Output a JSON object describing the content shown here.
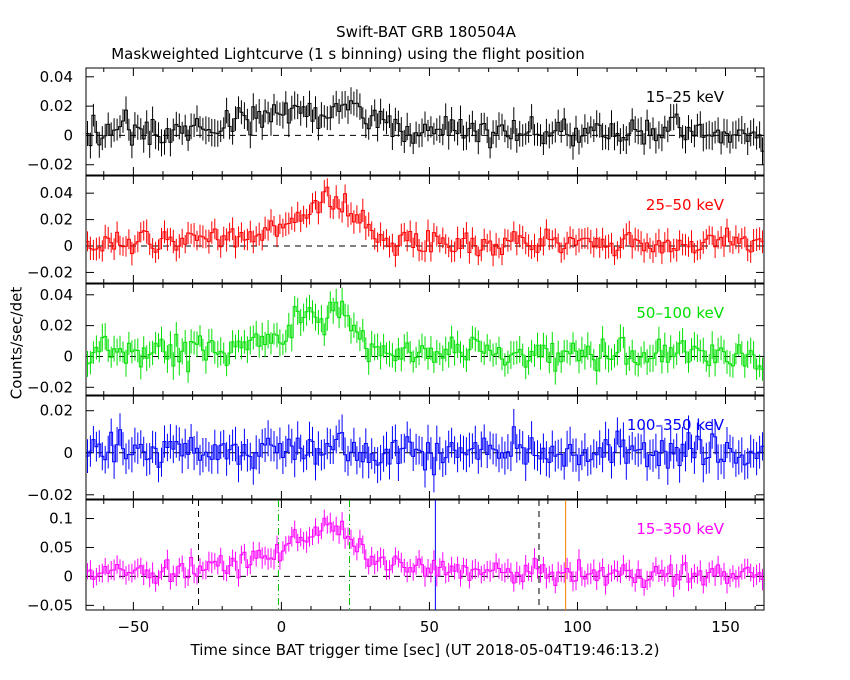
{
  "title": "Swift-BAT GRB 180504A",
  "subtitle": "Maskweighted Lightcurve (1 s binning) using the flight position",
  "chart_data": {
    "type": "line",
    "xlabel": "Time since BAT trigger time [sec] (UT 2018-05-04T19:46:13.2)",
    "ylabel": "Counts/sec/det",
    "xlim": [
      -66,
      163
    ],
    "x_ticks": [
      -50,
      0,
      50,
      100,
      150
    ],
    "x_tick_labels": [
      "−50",
      "0",
      "50",
      "100",
      "150"
    ],
    "binning_sec": 1,
    "panels": [
      {
        "band": "15–25 keV",
        "color": "#000000",
        "ylim": [
          -0.027,
          0.046
        ],
        "y_ticks": [
          -0.02,
          0,
          0.02,
          0.04
        ],
        "y_tick_labels": [
          "−0.02",
          "0",
          "0.02",
          "0.04"
        ],
        "noise": 0.0085,
        "profile": [
          [
            -66,
            0.002
          ],
          [
            -20,
            0.006
          ],
          [
            -5,
            0.013
          ],
          [
            10,
            0.018
          ],
          [
            22,
            0.02
          ],
          [
            32,
            0.008
          ],
          [
            45,
            0.003
          ],
          [
            163,
            0.001
          ]
        ]
      },
      {
        "band": "25–50 keV",
        "color": "#ff0000",
        "ylim": [
          -0.028,
          0.053
        ],
        "y_ticks": [
          -0.02,
          0,
          0.02,
          0.04
        ],
        "y_tick_labels": [
          "−0.02",
          "0",
          "0.02",
          "0.04"
        ],
        "noise": 0.008,
        "profile": [
          [
            -66,
            0.001
          ],
          [
            -20,
            0.005
          ],
          [
            0,
            0.013
          ],
          [
            8,
            0.028
          ],
          [
            18,
            0.035
          ],
          [
            25,
            0.022
          ],
          [
            32,
            0.007
          ],
          [
            45,
            0.003
          ],
          [
            163,
            0.002
          ]
        ]
      },
      {
        "band": "50–100 keV",
        "color": "#00e000",
        "ylim": [
          -0.025,
          0.047
        ],
        "y_ticks": [
          -0.02,
          0,
          0.02,
          0.04
        ],
        "y_tick_labels": [
          "−0.02",
          "0",
          "0.02",
          "0.04"
        ],
        "noise": 0.008,
        "profile": [
          [
            -66,
            0.001
          ],
          [
            -20,
            0.005
          ],
          [
            0,
            0.012
          ],
          [
            6,
            0.028
          ],
          [
            12,
            0.022
          ],
          [
            18,
            0.032
          ],
          [
            24,
            0.02
          ],
          [
            30,
            0.006
          ],
          [
            45,
            0.002
          ],
          [
            163,
            0.001
          ]
        ]
      },
      {
        "band": "100–350 keV",
        "color": "#0000ff",
        "ylim": [
          -0.022,
          0.027
        ],
        "y_ticks": [
          -0.02,
          0,
          0.02
        ],
        "y_tick_labels": [
          "−0.02",
          "0",
          "0.02"
        ],
        "noise": 0.0075,
        "profile": [
          [
            -66,
            0.0
          ],
          [
            0,
            0.002
          ],
          [
            18,
            0.004
          ],
          [
            30,
            0.001
          ],
          [
            163,
            0.0
          ]
        ]
      },
      {
        "band": "15–350 keV",
        "color": "#ff00ff",
        "ylim": [
          -0.058,
          0.132
        ],
        "y_ticks": [
          -0.05,
          0,
          0.05,
          0.1
        ],
        "y_tick_labels": [
          "−0.05",
          "0",
          "0.05",
          "0.1"
        ],
        "noise": 0.016,
        "profile": [
          [
            -66,
            0.005
          ],
          [
            -30,
            0.01
          ],
          [
            -15,
            0.022
          ],
          [
            -3,
            0.035
          ],
          [
            2,
            0.055
          ],
          [
            8,
            0.072
          ],
          [
            18,
            0.088
          ],
          [
            24,
            0.055
          ],
          [
            30,
            0.03
          ],
          [
            45,
            0.012
          ],
          [
            80,
            0.006
          ],
          [
            163,
            0.003
          ]
        ],
        "markers": [
          {
            "x": -28,
            "color": "#000000",
            "style": "dashed"
          },
          {
            "x": -1,
            "color": "#00c000",
            "style": "dashdot"
          },
          {
            "x": 23,
            "color": "#00c000",
            "style": "dashdot"
          },
          {
            "x": 52,
            "color": "#0000ff",
            "style": "solid"
          },
          {
            "x": 87,
            "color": "#000000",
            "style": "dashed"
          },
          {
            "x": 96,
            "color": "#ff8000",
            "style": "solid"
          }
        ]
      }
    ]
  }
}
